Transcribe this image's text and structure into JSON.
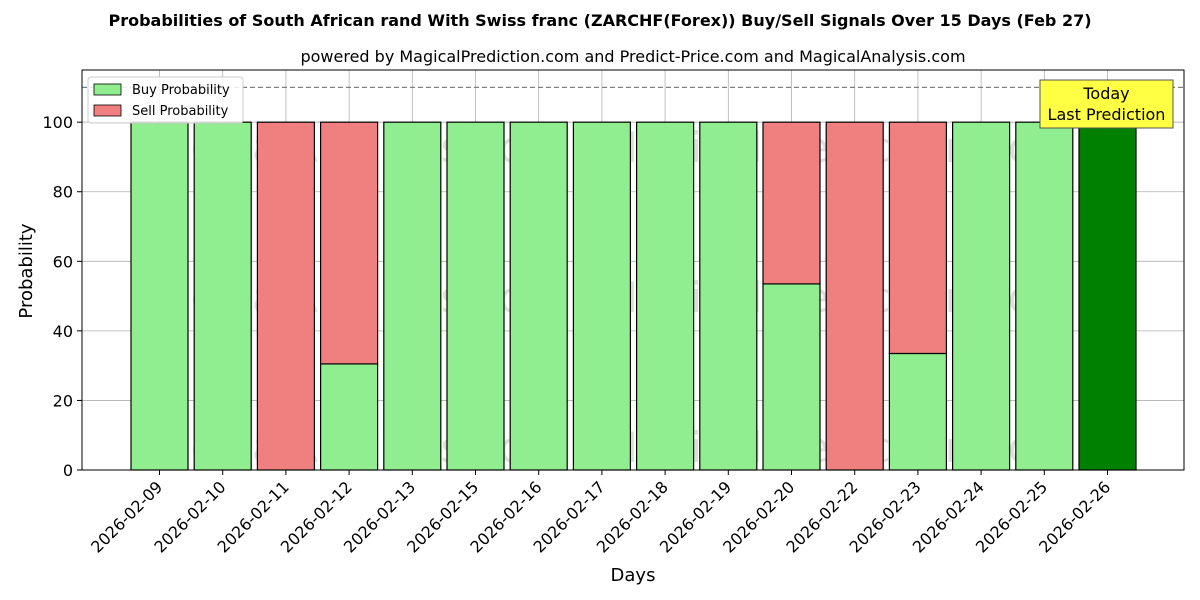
{
  "chart_data": {
    "type": "bar",
    "stacked": true,
    "title": "Probabilities of South African rand With Swiss franc (ZARCHF(Forex)) Buy/Sell Signals Over 15 Days (Feb 27)",
    "subtitle": "powered by MagicalPrediction.com and Predict-Price.com and MagicalAnalysis.com",
    "xlabel": "Days",
    "ylabel": "Probability",
    "ylim": [
      0,
      115
    ],
    "yticks": [
      0,
      20,
      40,
      60,
      80,
      100
    ],
    "reference_line": 110,
    "grid": true,
    "legend_position": "top-left",
    "watermarks": [
      "MagicalAnalysis.com",
      "MagicalPrediction.com"
    ],
    "categories": [
      "2026-02-09",
      "2026-02-10",
      "2026-02-11",
      "2026-02-12",
      "2026-02-13",
      "2026-02-15",
      "2026-02-16",
      "2026-02-17",
      "2026-02-18",
      "2026-02-19",
      "2026-02-20",
      "2026-02-22",
      "2026-02-23",
      "2026-02-24",
      "2026-02-25",
      "2026-02-26"
    ],
    "series": [
      {
        "name": "Buy Probability",
        "color": "#90ee90",
        "values": [
          100,
          100,
          0,
          30.5,
          100,
          100,
          100,
          100,
          100,
          100,
          53.5,
          0,
          33.5,
          100,
          100,
          100
        ]
      },
      {
        "name": "Sell Probability",
        "color": "#f08080",
        "values": [
          0,
          0,
          100,
          69.5,
          0,
          0,
          0,
          0,
          0,
          0,
          46.5,
          100,
          66.5,
          0,
          0,
          0
        ]
      }
    ],
    "highlight": {
      "index": 15,
      "color": "#008000",
      "label": "Today\nLast Prediction",
      "label_bg": "#ffff44"
    }
  }
}
